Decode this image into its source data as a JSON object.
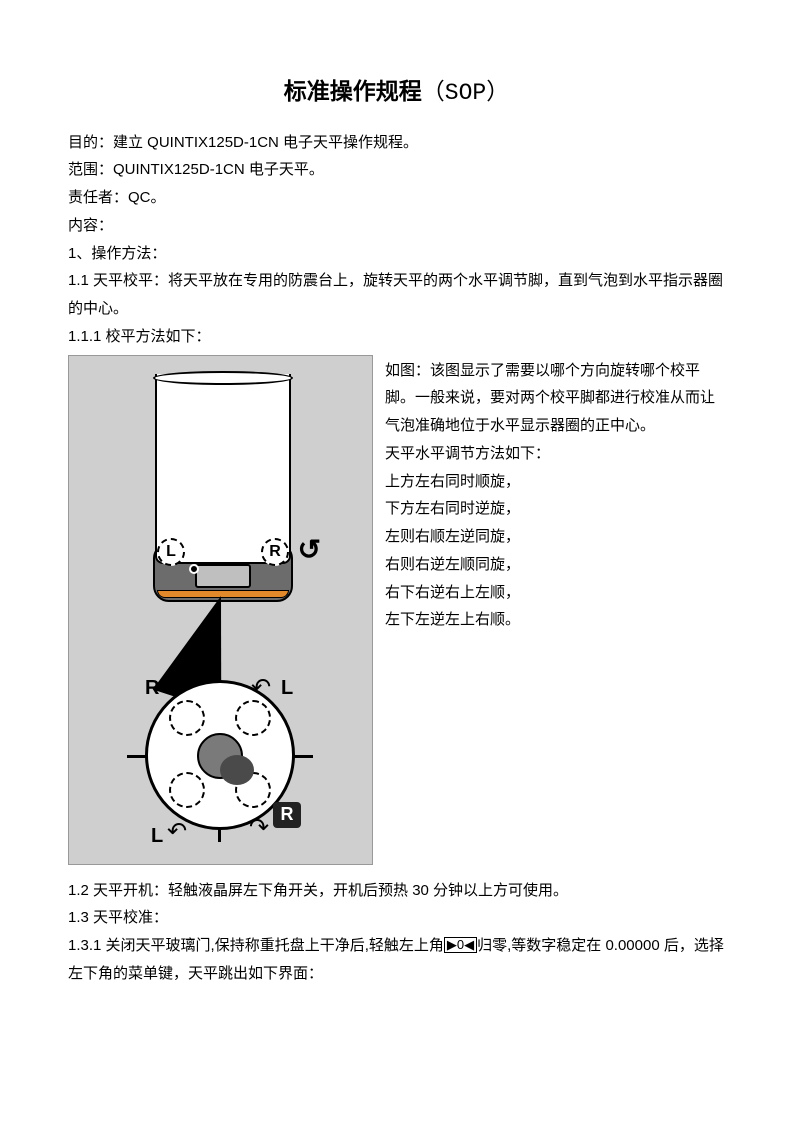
{
  "title_main": "标准操作规程",
  "title_sop": "（SOP）",
  "header": {
    "purpose": "目的：建立 QUINTIX125D-1CN 电子天平操作规程。",
    "scope": "范围：QUINTIX125D-1CN 电子天平。",
    "responsible": "责任者：QC。",
    "content_label": "内容："
  },
  "body": {
    "s1": "1、操作方法：",
    "s1_1": "1.1 天平校平：将天平放在专用的防震台上，旋转天平的两个水平调节脚，直到气泡到水平指示器圈的中心。",
    "s1_1_1": "1.1.1 校平方法如下：",
    "side": {
      "p1": "如图：该图显示了需要以哪个方向旋转哪个校平脚。一般来说，要对两个校平脚都进行校准从而让气泡准确地位于水平显示器圈的正中心。",
      "p2": "天平水平调节方法如下：",
      "p3": "上方左右同时顺旋，",
      "p4": "下方左右同时逆旋，",
      "p5": "左则右顺左逆同旋，",
      "p6": "右则右逆左顺同旋，",
      "p7": "右下右逆右上左顺，",
      "p8": "左下左逆左上右顺。"
    },
    "s1_2": "1.2 天平开机：轻触液晶屏左下角开关，开机后预热 30 分钟以上方可使用。",
    "s1_3": "1.3 天平校准：",
    "s1_3_1a": "1.3.1 关闭天平玻璃门,保持称重托盘上干净后,轻触左上角",
    "zero_key": "▶0◀",
    "s1_3_1b": "归零,等数字稳定在 0.00000 后，选择左下角的菜单键，天平跳出如下界面："
  },
  "figure": {
    "L": "L",
    "R": "R",
    "colors": {
      "bg": "#cfcfcf",
      "orange": "#e28a2b",
      "base": "#6c6c6c"
    }
  }
}
